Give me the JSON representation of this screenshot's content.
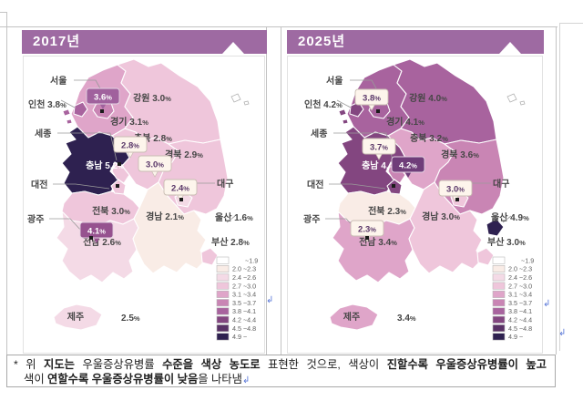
{
  "panels": [
    {
      "title": "2017년",
      "regions": [
        {
          "id": "seoul",
          "name": "서울",
          "value": "3.6",
          "bin": 6
        },
        {
          "id": "incheon",
          "name": "인천",
          "value": "3.8",
          "bin": 7
        },
        {
          "id": "gyeonggi",
          "name": "경기",
          "value": "3.1",
          "bin": 5
        },
        {
          "id": "gangwon",
          "name": "강원",
          "value": "3.0",
          "bin": 4
        },
        {
          "id": "chungbuk",
          "name": "충북",
          "value": "2.8",
          "bin": 4
        },
        {
          "id": "chungnam",
          "name": "충남",
          "value": "5.2",
          "bin": 10
        },
        {
          "id": "sejong",
          "name": "세종",
          "value": "2.8",
          "bin": 4
        },
        {
          "id": "daejeon",
          "name": "대전",
          "value": "3.0",
          "bin": 4
        },
        {
          "id": "gyeongbuk",
          "name": "경북",
          "value": "2.9",
          "bin": 4
        },
        {
          "id": "daegu",
          "name": "대구",
          "value": "2.4",
          "bin": 3
        },
        {
          "id": "jeonbuk",
          "name": "전북",
          "value": "3.0",
          "bin": 4
        },
        {
          "id": "gwangju",
          "name": "광주",
          "value": "4.1",
          "bin": 7
        },
        {
          "id": "jeonnam",
          "name": "전남",
          "value": "2.6",
          "bin": 3
        },
        {
          "id": "gyeongnam",
          "name": "경남",
          "value": "2.1",
          "bin": 2
        },
        {
          "id": "busan",
          "name": "부산",
          "value": "2.8",
          "bin": 4
        },
        {
          "id": "ulsan",
          "name": "울산",
          "value": "1.6",
          "bin": 1
        },
        {
          "id": "jeju",
          "name": "제주",
          "value": "2.5",
          "bin": 3
        }
      ],
      "callouts": {
        "seoul": {
          "filled": true,
          "fill": "#a0619d"
        },
        "sejong": {
          "filled": false,
          "fill": "#fdf5ec"
        },
        "daejeon": {
          "filled": false,
          "fill": "#fdf5ec"
        },
        "daegu": {
          "filled": false,
          "fill": "#fdf5ec"
        },
        "gwangju": {
          "filled": true,
          "fill": "#96528f"
        }
      }
    },
    {
      "title": "2025년",
      "regions": [
        {
          "id": "seoul",
          "name": "서울",
          "value": "3.8",
          "bin": 7
        },
        {
          "id": "incheon",
          "name": "인천",
          "value": "4.2",
          "bin": 8
        },
        {
          "id": "gyeonggi",
          "name": "경기",
          "value": "4.1",
          "bin": 7
        },
        {
          "id": "gangwon",
          "name": "강원",
          "value": "4.0",
          "bin": 7
        },
        {
          "id": "chungbuk",
          "name": "충북",
          "value": "3.2",
          "bin": 5
        },
        {
          "id": "chungnam",
          "name": "충남",
          "value": "4.4",
          "bin": 8
        },
        {
          "id": "sejong",
          "name": "세종",
          "value": "3.7",
          "bin": 6
        },
        {
          "id": "daejeon",
          "name": "대전",
          "value": "4.2",
          "bin": 8
        },
        {
          "id": "gyeongbuk",
          "name": "경북",
          "value": "3.6",
          "bin": 6
        },
        {
          "id": "daegu",
          "name": "대구",
          "value": "3.0",
          "bin": 4
        },
        {
          "id": "jeonbuk",
          "name": "전북",
          "value": "2.3",
          "bin": 2
        },
        {
          "id": "gwangju",
          "name": "광주",
          "value": "2.3",
          "bin": 2
        },
        {
          "id": "jeonnam",
          "name": "전남",
          "value": "3.4",
          "bin": 5
        },
        {
          "id": "gyeongnam",
          "name": "경남",
          "value": "3.0",
          "bin": 4
        },
        {
          "id": "busan",
          "name": "부산",
          "value": "3.0",
          "bin": 4
        },
        {
          "id": "ulsan",
          "name": "울산",
          "value": "4.9",
          "bin": 10
        },
        {
          "id": "jeju",
          "name": "제주",
          "value": "3.4",
          "bin": 5
        }
      ],
      "callouts": {
        "seoul": {
          "filled": false,
          "fill": "#fdf5ec"
        },
        "sejong": {
          "filled": false,
          "fill": "#fdf5ec"
        },
        "daejeon": {
          "filled": true,
          "fill": "#6f3d79"
        },
        "daegu": {
          "filled": false,
          "fill": "#fdf5ec"
        },
        "gwangju": {
          "filled": false,
          "fill": "#fdf5ec"
        }
      }
    }
  ],
  "legend": {
    "unit": "%",
    "bins": [
      {
        "range": "~1.9",
        "color": "#ffffff"
      },
      {
        "range": "2.0 ~2.3",
        "color": "#f9ece6"
      },
      {
        "range": "2.4 ~2.6",
        "color": "#f4dae6"
      },
      {
        "range": "2.7 ~3.0",
        "color": "#efc6db"
      },
      {
        "range": "3.1 ~3.4",
        "color": "#dfa5c9"
      },
      {
        "range": "3.5 ~3.7",
        "color": "#c985b4"
      },
      {
        "range": "3.8 ~4.1",
        "color": "#a8639e"
      },
      {
        "range": "4.2 ~4.4",
        "color": "#834680"
      },
      {
        "range": "4.5 ~4.8",
        "color": "#593166"
      },
      {
        "range": "4.9 ~",
        "color": "#2e2150"
      }
    ]
  },
  "footnote": {
    "lines": [
      {
        "segments": [
          {
            "t": "* 위 ",
            "b": false
          },
          {
            "t": "지도는",
            "b": true
          },
          {
            "t": " 우울증상유병률 ",
            "b": false
          },
          {
            "t": "수준을",
            "b": true
          },
          {
            "t": " ",
            "b": false
          },
          {
            "t": "색상",
            "b": true
          },
          {
            "t": " ",
            "b": false
          },
          {
            "t": "농도로",
            "b": true
          },
          {
            "t": " 표현한 것으로, 색상이 ",
            "b": false
          },
          {
            "t": "진할수록 우울증상유병률이 높고",
            "b": true
          }
        ]
      },
      {
        "segments": [
          {
            "t": "색이 ",
            "b": false
          },
          {
            "t": "연할수록 우울증상유병률이 낮음",
            "b": true
          },
          {
            "t": "을 나타냄",
            "b": false
          }
        ]
      }
    ],
    "return_mark": "↲"
  },
  "marks": {
    "return_mark": "↲"
  },
  "colors": {
    "header_bar": "#9e6aa2",
    "map_label_text": "#464646",
    "callout_text_light_bg": "#5a3769",
    "callout_text_dark_bg": "#ffffff",
    "leader_line": "#9a9a9a",
    "table_border": "#c3c3c3"
  },
  "chart_data": [
    {
      "type": "heatmap",
      "subtype": "choropleth_map_korea",
      "title": "2017년",
      "unit": "%",
      "values": {
        "서울": 3.6,
        "인천": 3.8,
        "경기": 3.1,
        "강원": 3.0,
        "충북": 2.8,
        "충남": 5.2,
        "세종": 2.8,
        "대전": 3.0,
        "경북": 2.9,
        "대구": 2.4,
        "전북": 3.0,
        "광주": 4.1,
        "전남": 2.6,
        "경남": 2.1,
        "부산": 2.8,
        "울산": 1.6,
        "제주": 2.5
      },
      "legend_position": "bottom-right",
      "scale_bins": [
        "~1.9",
        "2.0~2.3",
        "2.4~2.6",
        "2.7~3.0",
        "3.1~3.4",
        "3.5~3.7",
        "3.8~4.1",
        "4.2~4.4",
        "4.5~4.8",
        "4.9~"
      ]
    },
    {
      "type": "heatmap",
      "subtype": "choropleth_map_korea",
      "title": "2025년",
      "unit": "%",
      "values": {
        "서울": 3.8,
        "인천": 4.2,
        "경기": 4.1,
        "강원": 4.0,
        "충북": 3.2,
        "충남": 4.4,
        "세종": 3.7,
        "대전": 4.2,
        "경북": 3.6,
        "대구": 3.0,
        "전북": 2.3,
        "광주": 2.3,
        "전남": 3.4,
        "경남": 3.0,
        "부산": 3.0,
        "울산": 4.9,
        "제주": 3.4
      },
      "legend_position": "bottom-right",
      "scale_bins": [
        "~1.9",
        "2.0~2.3",
        "2.4~2.6",
        "2.7~3.0",
        "3.1~3.4",
        "3.5~3.7",
        "3.8~4.1",
        "4.2~4.4",
        "4.5~4.8",
        "4.9~"
      ]
    }
  ]
}
